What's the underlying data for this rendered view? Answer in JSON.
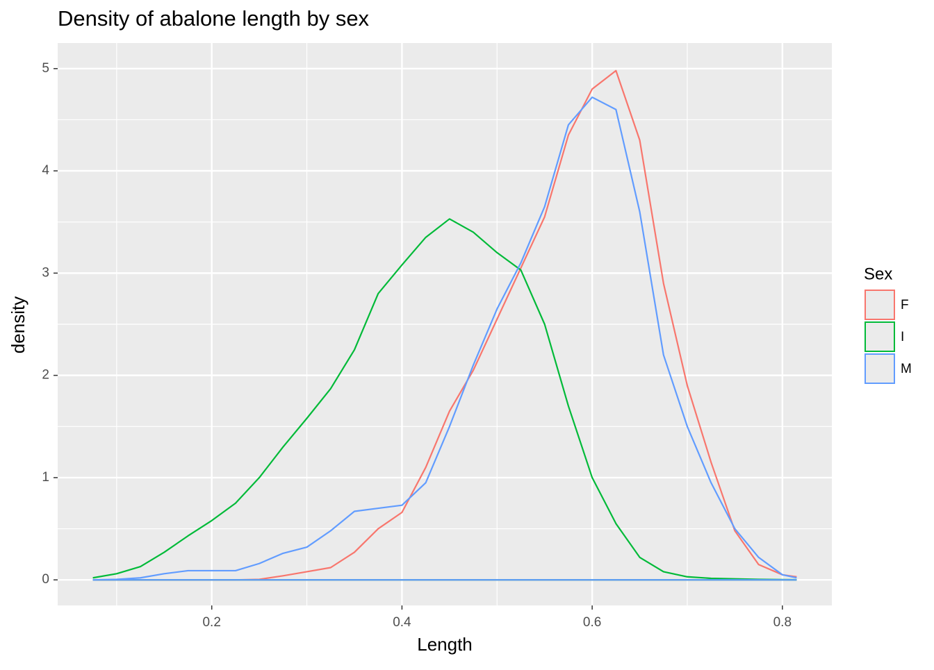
{
  "chart_data": {
    "type": "density",
    "title": "Density of abalone length by sex",
    "x_label": "Length",
    "y_label": "density",
    "legend_title": "Sex",
    "legend_position": "right",
    "x": [
      0.075,
      0.1,
      0.125,
      0.15,
      0.175,
      0.2,
      0.225,
      0.25,
      0.275,
      0.3,
      0.325,
      0.35,
      0.375,
      0.4,
      0.425,
      0.45,
      0.475,
      0.5,
      0.525,
      0.55,
      0.575,
      0.6,
      0.625,
      0.65,
      0.675,
      0.7,
      0.725,
      0.75,
      0.775,
      0.8,
      0.815
    ],
    "series": [
      {
        "name": "F",
        "color": "#F8766D",
        "values": [
          0,
          0,
          0,
          0,
          0,
          0,
          0,
          0.005,
          0.04,
          0.08,
          0.12,
          0.27,
          0.5,
          0.66,
          1.1,
          1.65,
          2.05,
          2.55,
          3.05,
          3.55,
          4.35,
          4.8,
          4.98,
          4.3,
          2.9,
          1.9,
          1.15,
          0.48,
          0.15,
          0.05,
          0.03
        ]
      },
      {
        "name": "I",
        "color": "#00BA38",
        "values": [
          0.02,
          0.06,
          0.13,
          0.27,
          0.43,
          0.58,
          0.75,
          1.0,
          1.3,
          1.58,
          1.87,
          2.25,
          2.8,
          3.08,
          3.35,
          3.53,
          3.4,
          3.2,
          3.03,
          2.5,
          1.7,
          1.0,
          0.55,
          0.22,
          0.08,
          0.03,
          0.015,
          0.01,
          0.005,
          0.002,
          0.001
        ]
      },
      {
        "name": "M",
        "color": "#619CFF",
        "values": [
          0,
          0.005,
          0.02,
          0.06,
          0.09,
          0.09,
          0.09,
          0.16,
          0.26,
          0.32,
          0.48,
          0.67,
          0.7,
          0.73,
          0.95,
          1.5,
          2.1,
          2.65,
          3.1,
          3.65,
          4.45,
          4.72,
          4.6,
          3.6,
          2.2,
          1.5,
          0.95,
          0.5,
          0.22,
          0.05,
          0.02
        ]
      }
    ],
    "xlim": [
      0.038,
      0.852
    ],
    "ylim": [
      -0.25,
      5.25
    ],
    "xticks": [
      0.2,
      0.4,
      0.6,
      0.8
    ],
    "yticks": [
      0,
      1,
      2,
      3,
      4,
      5
    ],
    "xminor": [
      0.1,
      0.3,
      0.5,
      0.7
    ],
    "yminor": [
      0.5,
      1.5,
      2.5,
      3.5,
      4.5
    ],
    "grid": true
  }
}
